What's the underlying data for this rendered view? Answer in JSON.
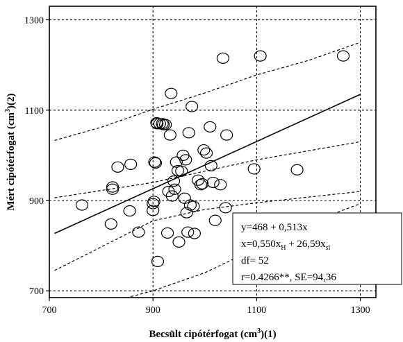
{
  "chart_data": {
    "type": "scatter",
    "xlabel": "Becsült cipótérfogat (cm",
    "xlabel_sup": "3",
    "xlabel_tail": ")(1)",
    "ylabel": "Mért cipótérfogat (cm",
    "ylabel_sup": "3",
    "ylabel_tail": ")(2)",
    "xlim": [
      700,
      1330
    ],
    "ylim": [
      685,
      1330
    ],
    "xticks": [
      700,
      900,
      1100,
      1300
    ],
    "yticks": [
      700,
      900,
      1100,
      1300
    ],
    "grid": true,
    "grid_style": "dashed",
    "points": {
      "x": [
        763,
        819,
        822,
        822,
        832,
        855,
        857,
        872,
        900,
        900,
        902,
        903,
        905,
        907,
        908,
        909,
        913,
        918,
        920,
        924,
        928,
        930,
        933,
        935,
        937,
        940,
        942,
        945,
        948,
        950,
        955,
        958,
        961,
        963,
        965,
        967,
        969,
        972,
        975,
        978,
        980,
        987,
        992,
        995,
        998,
        1003,
        1010,
        1012,
        1016,
        1020,
        1030,
        1035,
        1040,
        1042,
        1095,
        1107,
        1178,
        1267
      ],
      "y": [
        890,
        848,
        925,
        930,
        974,
        877,
        980,
        830,
        878,
        893,
        898,
        985,
        983,
        1072,
        1070,
        765,
        1070,
        1070,
        1068,
        1068,
        828,
        920,
        1045,
        1137,
        910,
        943,
        925,
        985,
        966,
        808,
        965,
        1000,
        905,
        990,
        873,
        830,
        1050,
        890,
        1108,
        887,
        827,
        945,
        935,
        937,
        1012,
        1005,
        1063,
        977,
        940,
        856,
        935,
        1215,
        884,
        1045,
        970,
        1220,
        968,
        1220
      ]
    },
    "regression_line": {
      "x": [
        710,
        1300
      ],
      "y": [
        827,
        1135
      ]
    },
    "confidence_band_upper": {
      "x": [
        710,
        900,
        1000,
        1100,
        1300
      ],
      "y": [
        906,
        940,
        965,
        990,
        1030
      ]
    },
    "confidence_band_lower": {
      "x": [
        710,
        900,
        1000,
        1100,
        1300
      ],
      "y": [
        745,
        855,
        880,
        895,
        920
      ]
    },
    "prediction_band_upper": {
      "x": [
        710,
        800,
        900,
        1000,
        1100,
        1200,
        1300
      ],
      "y": [
        1033,
        1062,
        1102,
        1138,
        1178,
        1210,
        1250
      ]
    },
    "prediction_band_lower": {
      "x": [
        710,
        800,
        900,
        1000,
        1100,
        1200,
        1300
      ],
      "y": [
        655,
        670,
        700,
        740,
        795,
        850,
        893
      ]
    },
    "annotation": {
      "line1": "y=468 + 0,513x",
      "line2_a": "x=0,550x",
      "line2_sub_a": "H",
      "line2_b": " + 26,59x",
      "line2_sub_b": "si",
      "line3": "df= 52",
      "line4": "r=0.4266**, SE=94,36"
    }
  }
}
